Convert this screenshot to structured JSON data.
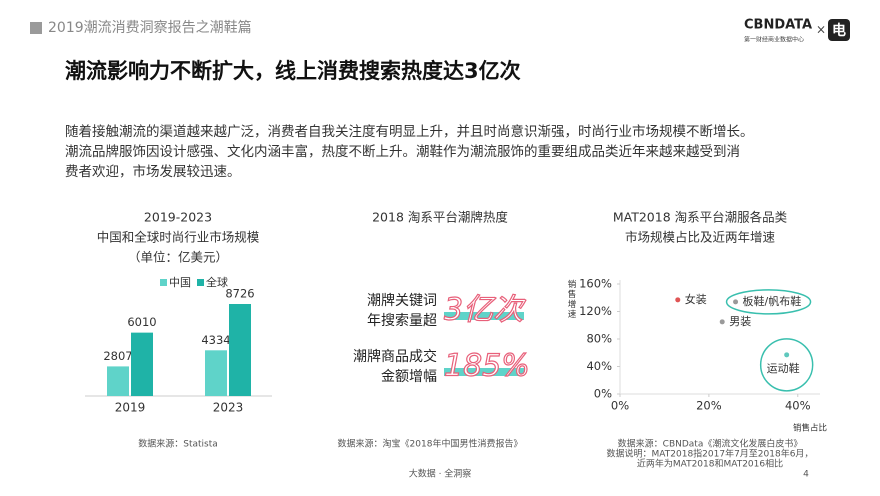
{
  "header": {
    "title": "2019潮流消费洞察报告之潮鞋篇",
    "logo": "CBNDATA",
    "logo_sub": "第一财经商业数据中心",
    "cross": "×",
    "icon": "电"
  },
  "title": "潮流影响力不断扩大，线上消费搜索热度达3亿次",
  "paragraph": [
    "随着接触潮流的渠道越来越广泛，消费者自我关注度有明显上升，并且时尚意识渐强，时尚行业市场规模不断增长。",
    "潮流品牌服饰因设计感强、文化内涵丰富，热度不断上升。潮鞋作为潮流服饰的重要组成品类近年来越来越受到消",
    "费者欢迎，市场发展较迅速。"
  ],
  "chart_data": [
    {
      "type": "bar",
      "title": [
        "2019-2023",
        "中国和全球时尚行业市场规模",
        "（单位：亿美元）"
      ],
      "categories": [
        "2019",
        "2023"
      ],
      "series": [
        {
          "name": "中国",
          "color": "#5fd3c9",
          "values": [
            2807,
            4334
          ]
        },
        {
          "name": "全球",
          "color": "#1fb3a7",
          "values": [
            6010,
            8726
          ]
        }
      ],
      "source": "数据来源：Statista"
    },
    {
      "type": "scatter",
      "title": [
        "MAT2018 淘系平台潮服各品类",
        "市场规模占比及近两年增速"
      ],
      "x_label": "销售占比",
      "y_label": "销售增速",
      "xlim": [
        0,
        45
      ],
      "ylim": [
        0,
        160
      ],
      "xticks": [
        {
          "value": 0,
          "label": "0%"
        },
        {
          "value": 20,
          "label": "20%"
        },
        {
          "value": 40,
          "label": "40%"
        }
      ],
      "yticks": [
        {
          "value": 0,
          "label": "0%"
        },
        {
          "value": 40,
          "label": "40%"
        },
        {
          "value": 80,
          "label": "80%"
        },
        {
          "value": 120,
          "label": "120%"
        },
        {
          "value": 160,
          "label": "160%"
        }
      ],
      "x": [
        13,
        26,
        23,
        37.5
      ],
      "values": [
        137,
        134,
        105,
        57
      ],
      "labels": [
        "女装",
        "板鞋/帆布鞋",
        "男装",
        "运动鞋"
      ],
      "colors": [
        "#e05555",
        "#9a9a9a",
        "#9a9a9a",
        "#5fc8bd"
      ],
      "highlight": [
        false,
        true,
        false,
        true
      ],
      "highlight_color": "#39bfae",
      "source": [
        "数据来源：CBNData《潮流文化发展白皮书》",
        "数据说明：MAT2018指2017年7月至2018年6月，",
        "近两年为MAT2018和MAT2016相比"
      ]
    }
  ],
  "highlights": {
    "title": "2018 淘系平台潮牌热度",
    "items": [
      {
        "label": [
          "潮牌关键词",
          "年搜索量超"
        ],
        "value": "3亿次"
      },
      {
        "label": [
          "潮牌商品成交",
          "金额增幅"
        ],
        "value": "185%"
      }
    ],
    "source": "数据来源：淘宝《2018年中国男性消费报告》"
  },
  "footer": {
    "tagline": "大数据 · 全洞察",
    "page": "4"
  }
}
